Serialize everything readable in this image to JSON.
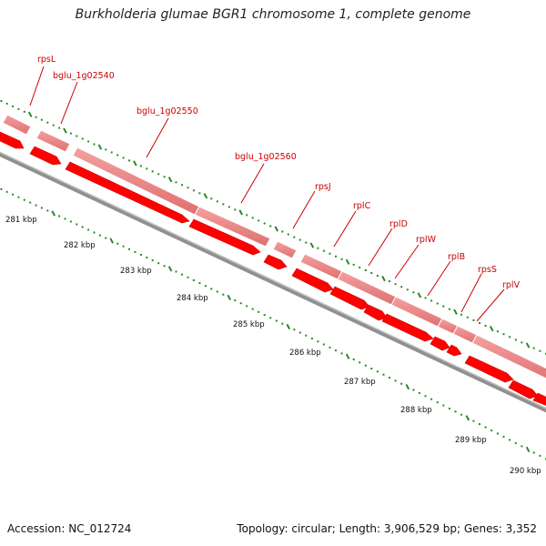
{
  "title": "Burkholderia glumae BGR1 chromosome 1, complete genome",
  "footer": {
    "accession": "Accession: NC_012724",
    "summary": "Topology: circular; Length: 3,906,529 bp; Genes: 3,352"
  },
  "genes": [
    {
      "label": "rpsL"
    },
    {
      "label": "bglu_1g02540"
    },
    {
      "label": "bglu_1g02550"
    },
    {
      "label": "bglu_1g02560"
    },
    {
      "label": "rpsJ"
    },
    {
      "label": "rplC"
    },
    {
      "label": "rplD"
    },
    {
      "label": "rplW"
    },
    {
      "label": "rplB"
    },
    {
      "label": "rpsS"
    },
    {
      "label": "rplV"
    }
  ],
  "kbp_ticks": [
    "281 kbp",
    "282 kbp",
    "283 kbp",
    "284 kbp",
    "285 kbp",
    "286 kbp",
    "287 kbp",
    "288 kbp",
    "289 kbp",
    "290 kbp"
  ],
  "colors": {
    "gene_arrow": "#ff0000",
    "gene_band": "#f08080",
    "label": "#cc0000",
    "backbone": "#808080",
    "tick": "#2a8a2a"
  }
}
